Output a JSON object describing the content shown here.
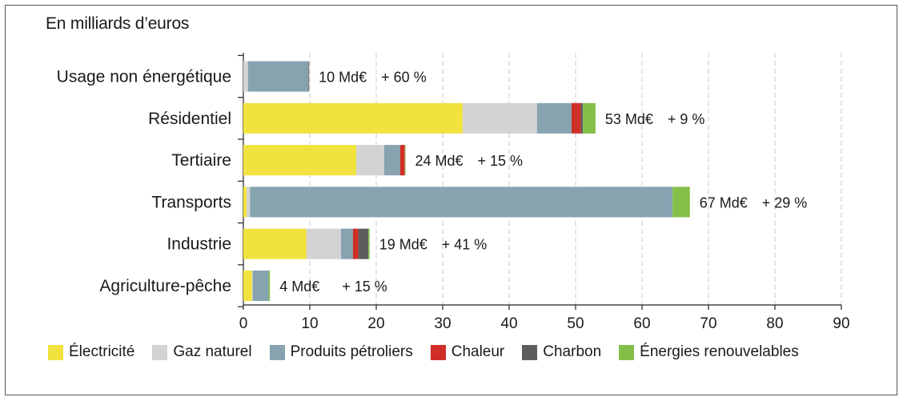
{
  "chart_data": {
    "type": "bar",
    "orientation": "horizontal",
    "stacked": true,
    "title": "En milliards d’euros",
    "xlim": [
      0,
      90
    ],
    "xticks": [
      0,
      10,
      20,
      30,
      40,
      50,
      60,
      70,
      80,
      90
    ],
    "grid": "vertical dashed",
    "legend_position": "bottom",
    "categories": [
      "Usage non énergétique",
      "Résidentiel",
      "Tertiaire",
      "Transports",
      "Industrie",
      "Agriculture-pêche"
    ],
    "series": [
      {
        "name": "Électricité",
        "color": "#f2e23f",
        "values": [
          0,
          33,
          17,
          0.5,
          9.5,
          1.3
        ]
      },
      {
        "name": "Gaz naturel",
        "color": "#d3d3d5",
        "values": [
          0.7,
          11.2,
          4.2,
          0.5,
          5.2,
          0.1
        ]
      },
      {
        "name": "Produits pétroliers",
        "color": "#86a3af",
        "values": [
          9.1,
          5.2,
          2.4,
          63.6,
          1.8,
          2.4
        ]
      },
      {
        "name": "Chaleur",
        "color": "#cf2f27",
        "values": [
          0,
          1.4,
          0.7,
          0,
          0.8,
          0
        ]
      },
      {
        "name": "Charbon",
        "color": "#5d5d5d",
        "values": [
          0.1,
          0.3,
          0,
          0,
          1.5,
          0
        ]
      },
      {
        "name": "Énergies renouvelables",
        "color": "#84bf4a",
        "values": [
          0,
          1.9,
          0.1,
          2.6,
          0.2,
          0.2
        ]
      }
    ],
    "annotations": [
      {
        "total": "10 Md€",
        "change": "+ 60 %"
      },
      {
        "total": "53 Md€",
        "change": "+ 9 %"
      },
      {
        "total": "24 Md€",
        "change": "+ 15 %"
      },
      {
        "total": "67 Md€",
        "change": "+ 29 %"
      },
      {
        "total": "19 Md€",
        "change": "+ 41 %"
      },
      {
        "total": "4 Md€",
        "change": "+ 15 %"
      }
    ]
  }
}
